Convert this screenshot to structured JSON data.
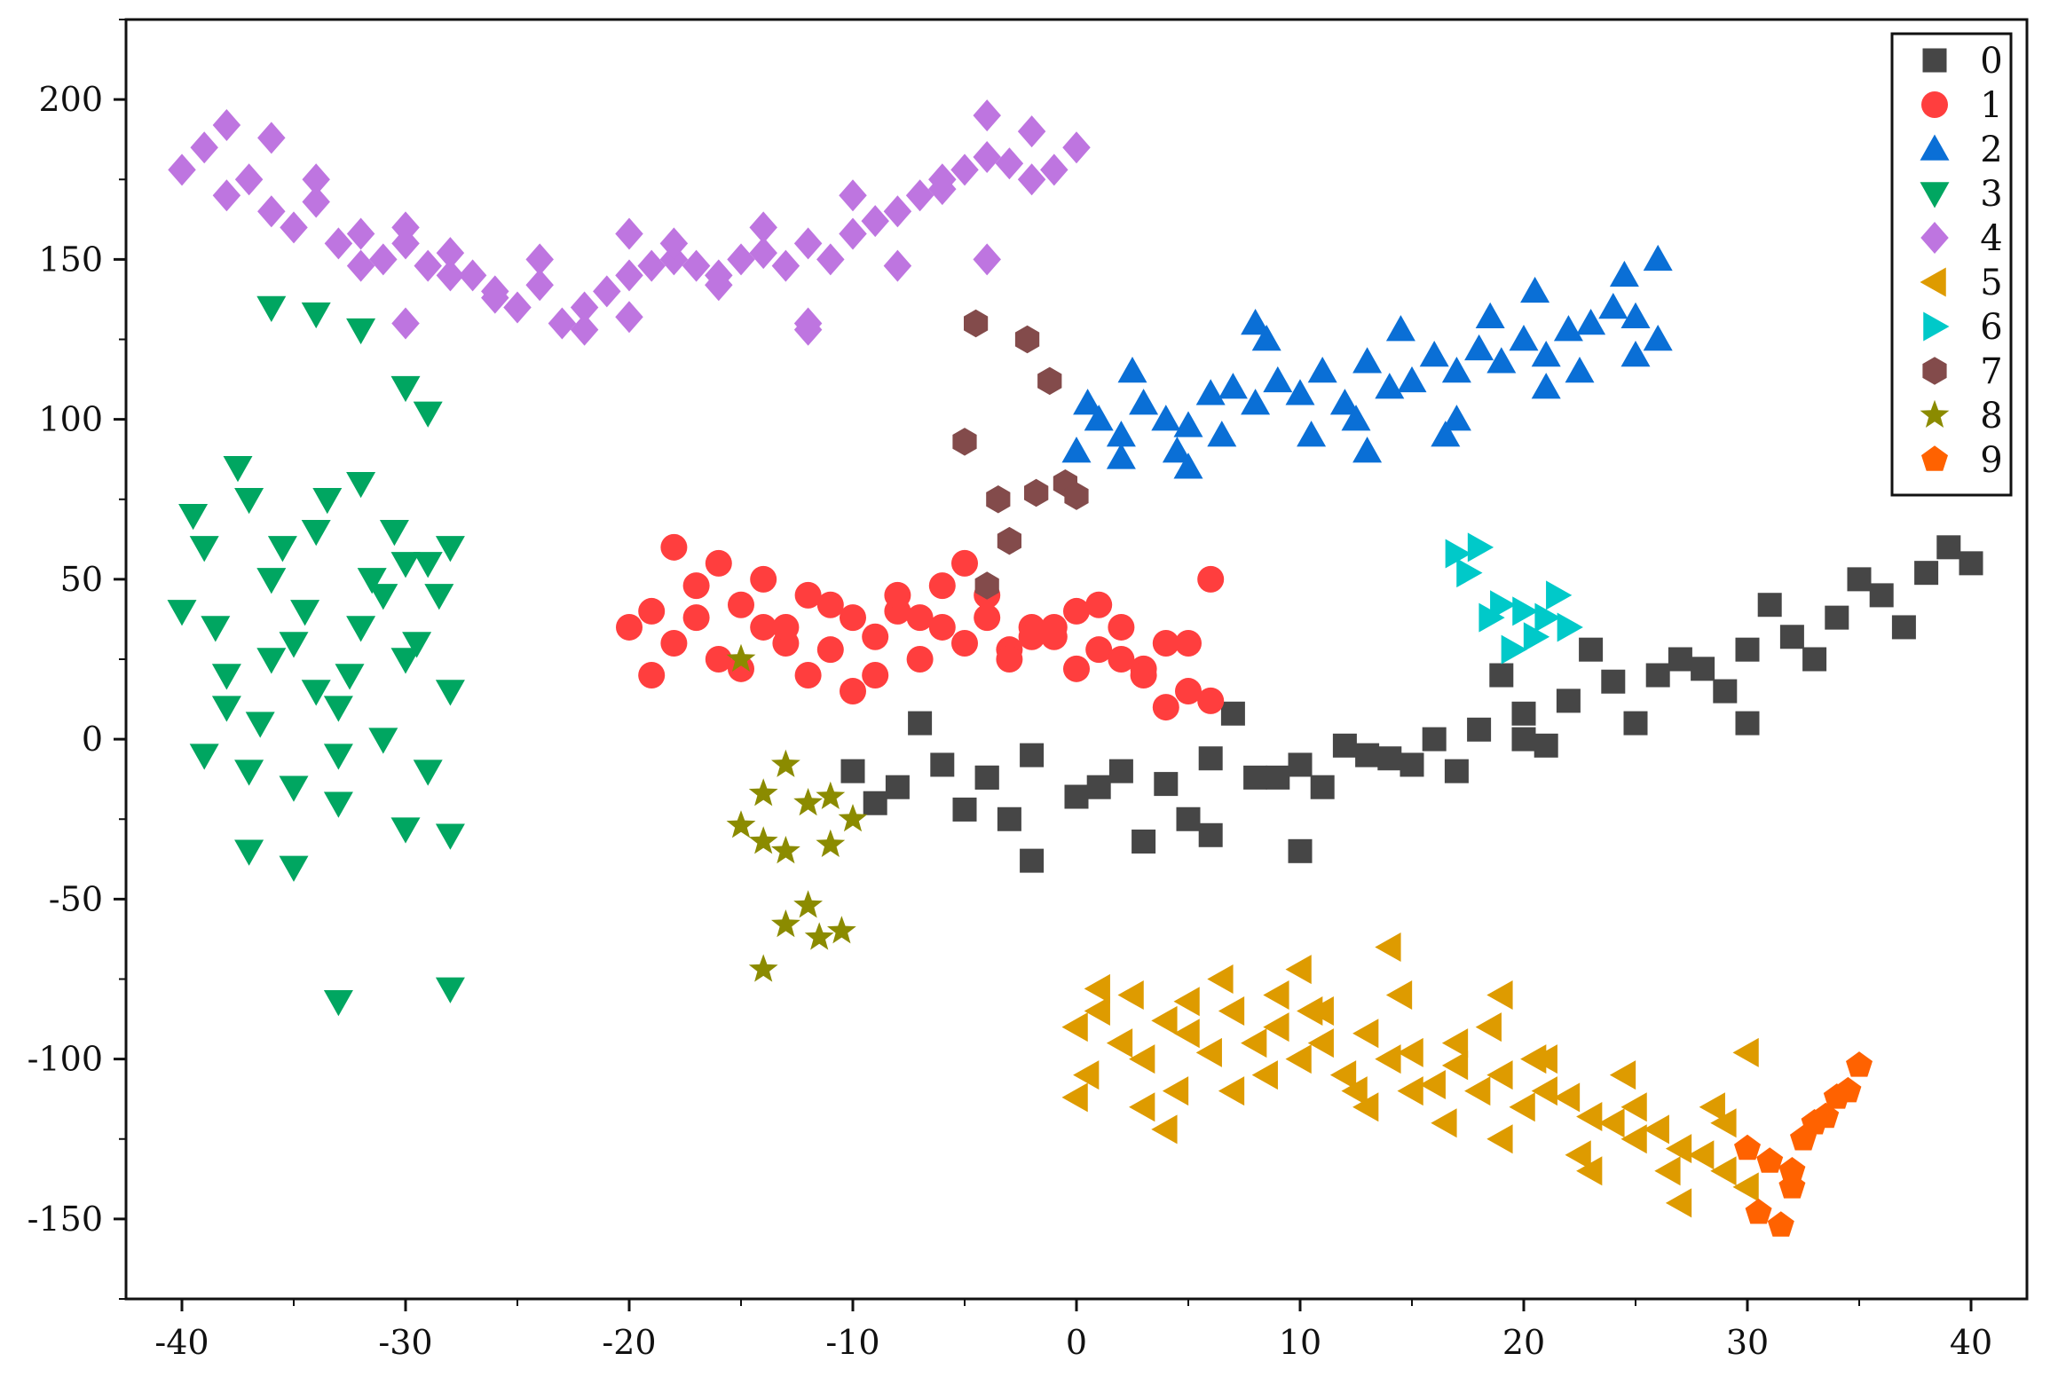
{
  "chart_data": {
    "type": "scatter",
    "title": "",
    "xlabel": "",
    "ylabel": "",
    "xlim": [
      -42.5,
      42.5
    ],
    "ylim": [
      -175,
      225
    ],
    "xticks": [
      -40,
      -30,
      -20,
      -10,
      0,
      10,
      20,
      30,
      40
    ],
    "yticks": [
      200,
      150,
      100,
      50,
      0,
      -50,
      -100,
      -150
    ],
    "grid": false,
    "legend_position": "top-right",
    "series": [
      {
        "name": "0",
        "marker": "square",
        "color": "#464646",
        "x": [
          -10,
          -8,
          -6,
          -4,
          -2,
          0,
          2,
          4,
          6,
          8,
          10,
          12,
          14,
          16,
          18,
          20,
          22,
          24,
          26,
          28,
          30,
          32,
          34,
          36,
          38,
          40,
          -9,
          -5,
          -3,
          1,
          5,
          9,
          13,
          17,
          21,
          25,
          29,
          33,
          37,
          39,
          -2,
          3,
          10,
          15,
          20,
          30,
          35,
          -7,
          7,
          27,
          31,
          19,
          23,
          11,
          -4,
          6
        ],
        "y": [
          -10,
          -15,
          -8,
          -12,
          -5,
          -18,
          -10,
          -14,
          -6,
          -12,
          -8,
          -2,
          -6,
          0,
          3,
          8,
          12,
          18,
          20,
          22,
          28,
          32,
          38,
          45,
          52,
          55,
          -20,
          -22,
          -25,
          -15,
          -25,
          -12,
          -5,
          -10,
          -2,
          5,
          15,
          25,
          35,
          60,
          -38,
          -32,
          -35,
          -8,
          0,
          5,
          50,
          5,
          8,
          25,
          42,
          20,
          28,
          -15,
          -12,
          -30
        ]
      },
      {
        "name": "1",
        "marker": "circle",
        "color": "#ff3e3e",
        "x": [
          -20,
          -19,
          -18,
          -17,
          -16,
          -15,
          -14,
          -13,
          -12,
          -11,
          -10,
          -9,
          -8,
          -7,
          -6,
          -5,
          -4,
          -3,
          -2,
          -1,
          0,
          1,
          2,
          3,
          4,
          5,
          6,
          -19,
          -17,
          -15,
          -13,
          -11,
          -9,
          -7,
          -5,
          -3,
          -1,
          1,
          3,
          5,
          -18,
          -14,
          -10,
          -6,
          -2,
          2,
          6,
          -16,
          -12,
          -8,
          -4,
          0,
          4
        ],
        "y": [
          35,
          40,
          30,
          38,
          25,
          42,
          35,
          30,
          45,
          28,
          38,
          32,
          40,
          25,
          35,
          30,
          45,
          28,
          35,
          32,
          40,
          28,
          35,
          22,
          30,
          15,
          50,
          20,
          48,
          22,
          35,
          42,
          20,
          38,
          55,
          25,
          35,
          42,
          20,
          30,
          60,
          50,
          15,
          48,
          32,
          25,
          12,
          55,
          20,
          45,
          38,
          22,
          10
        ]
      },
      {
        "name": "2",
        "marker": "triangle-up",
        "color": "#0a6fd6",
        "x": [
          0,
          1,
          2,
          3,
          4,
          5,
          6,
          7,
          8,
          9,
          10,
          11,
          12,
          13,
          14,
          15,
          16,
          17,
          18,
          19,
          20,
          21,
          22,
          23,
          24,
          25,
          26,
          0.5,
          2.5,
          4.5,
          6.5,
          8.5,
          10.5,
          12.5,
          14.5,
          16.5,
          18.5,
          20.5,
          22.5,
          24.5,
          26,
          2,
          5,
          8,
          13,
          17,
          21,
          25
        ],
        "y": [
          90,
          100,
          95,
          105,
          100,
          98,
          108,
          110,
          105,
          112,
          108,
          115,
          105,
          118,
          110,
          112,
          120,
          115,
          122,
          118,
          125,
          120,
          128,
          130,
          135,
          132,
          150,
          105,
          115,
          90,
          95,
          125,
          95,
          100,
          128,
          95,
          132,
          140,
          115,
          145,
          125,
          88,
          85,
          130,
          90,
          100,
          110,
          120
        ]
      },
      {
        "name": "3",
        "marker": "triangle-down",
        "color": "#00a661",
        "x": [
          -40,
          -39,
          -38,
          -37,
          -36,
          -35,
          -34,
          -33,
          -32,
          -31,
          -30,
          -29,
          -28,
          -39.5,
          -38.5,
          -37.5,
          -36.5,
          -35.5,
          -34.5,
          -33.5,
          -32.5,
          -31.5,
          -30.5,
          -29.5,
          -28.5,
          -39,
          -37,
          -35,
          -33,
          -31,
          -29,
          -38,
          -36,
          -34,
          -32,
          -30,
          -28,
          -37,
          -35,
          -33,
          -30,
          -28,
          -36,
          -34,
          -30,
          -29,
          -32,
          -33,
          -28
        ],
        "y": [
          40,
          60,
          20,
          75,
          50,
          30,
          65,
          10,
          80,
          45,
          25,
          55,
          15,
          70,
          35,
          85,
          5,
          60,
          40,
          75,
          20,
          50,
          65,
          30,
          45,
          -5,
          -10,
          -15,
          -5,
          0,
          -10,
          10,
          25,
          15,
          35,
          55,
          60,
          -35,
          -40,
          -20,
          -28,
          -30,
          135,
          133,
          110,
          102,
          128,
          -82,
          -78
        ]
      },
      {
        "name": "4",
        "marker": "diamond",
        "color": "#be75e0",
        "x": [
          -40,
          -39,
          -38,
          -37,
          -36,
          -35,
          -34,
          -33,
          -32,
          -31,
          -30,
          -29,
          -28,
          -27,
          -26,
          -25,
          -24,
          -23,
          -22,
          -21,
          -20,
          -19,
          -18,
          -17,
          -16,
          -15,
          -14,
          -13,
          -12,
          -11,
          -10,
          -9,
          -8,
          -7,
          -6,
          -5,
          -4,
          -3,
          -2,
          -1,
          0,
          -38,
          -36,
          -34,
          -32,
          -30,
          -28,
          -26,
          -24,
          -22,
          -20,
          -18,
          -16,
          -14,
          -12,
          -10,
          -8,
          -6,
          -4,
          -2,
          -30,
          -20,
          -12,
          -4
        ],
        "y": [
          178,
          185,
          170,
          175,
          165,
          160,
          168,
          155,
          158,
          150,
          155,
          148,
          152,
          145,
          140,
          135,
          142,
          130,
          135,
          140,
          145,
          148,
          150,
          148,
          145,
          150,
          152,
          148,
          155,
          150,
          158,
          162,
          165,
          170,
          172,
          178,
          182,
          180,
          175,
          178,
          185,
          192,
          188,
          175,
          148,
          160,
          145,
          138,
          150,
          128,
          132,
          155,
          142,
          160,
          130,
          170,
          148,
          175,
          195,
          190,
          130,
          158,
          128,
          150
        ]
      },
      {
        "name": "5",
        "marker": "triangle-left",
        "color": "#de9b00",
        "x": [
          0,
          1,
          2,
          3,
          4,
          5,
          6,
          7,
          8,
          9,
          10,
          11,
          12,
          13,
          14,
          15,
          16,
          17,
          18,
          19,
          20,
          21,
          22,
          23,
          24,
          25,
          26,
          27,
          28,
          29,
          30,
          0.5,
          2.5,
          4.5,
          6.5,
          8.5,
          10.5,
          12.5,
          14.5,
          16.5,
          18.5,
          20.5,
          22.5,
          24.5,
          26.5,
          28.5,
          1,
          3,
          5,
          7,
          9,
          11,
          13,
          15,
          17,
          19,
          21,
          23,
          25,
          27,
          29,
          14,
          10,
          19,
          30,
          0,
          4
        ],
        "y": [
          -90,
          -85,
          -95,
          -100,
          -88,
          -92,
          -98,
          -85,
          -95,
          -90,
          -100,
          -95,
          -105,
          -92,
          -100,
          -98,
          -108,
          -102,
          -110,
          -105,
          -115,
          -110,
          -112,
          -118,
          -120,
          -125,
          -122,
          -128,
          -130,
          -135,
          -140,
          -105,
          -80,
          -110,
          -75,
          -105,
          -85,
          -110,
          -80,
          -120,
          -90,
          -100,
          -130,
          -105,
          -135,
          -115,
          -78,
          -115,
          -82,
          -110,
          -80,
          -85,
          -115,
          -110,
          -95,
          -125,
          -100,
          -135,
          -115,
          -145,
          -120,
          -65,
          -72,
          -80,
          -98,
          -112,
          -122
        ]
      },
      {
        "name": "6",
        "marker": "triangle-right",
        "color": "#00c9c9",
        "x": [
          17,
          18,
          17.5,
          19,
          20,
          21,
          22,
          19.5,
          20.5,
          18.5,
          21.5
        ],
        "y": [
          58,
          60,
          52,
          42,
          40,
          38,
          35,
          28,
          32,
          38,
          45
        ]
      },
      {
        "name": "7",
        "marker": "hexagon",
        "color": "#834b4b",
        "x": [
          -4.5,
          -2.2,
          -1.2,
          -5,
          -3.5,
          -1.8,
          -0.5,
          0,
          -3,
          -4
        ],
        "y": [
          130,
          125,
          112,
          93,
          75,
          77,
          80,
          76,
          62,
          48
        ]
      },
      {
        "name": "8",
        "marker": "star",
        "color": "#8b8b00",
        "x": [
          -15,
          -13,
          -14,
          -12,
          -11,
          -15,
          -14,
          -13,
          -11,
          -10,
          -12,
          -13,
          -11.5,
          -10.5,
          -14
        ],
        "y": [
          25,
          -8,
          -17,
          -20,
          -18,
          -27,
          -32,
          -35,
          -33,
          -25,
          -52,
          -58,
          -62,
          -60,
          -72
        ]
      },
      {
        "name": "9",
        "marker": "pentagon",
        "color": "#ff6200",
        "x": [
          30,
          31,
          32,
          33,
          34,
          35,
          33.5,
          34.5,
          32.5,
          31.5,
          30.5,
          32
        ],
        "y": [
          -128,
          -132,
          -135,
          -120,
          -112,
          -102,
          -118,
          -110,
          -125,
          -152,
          -148,
          -140
        ]
      }
    ]
  }
}
